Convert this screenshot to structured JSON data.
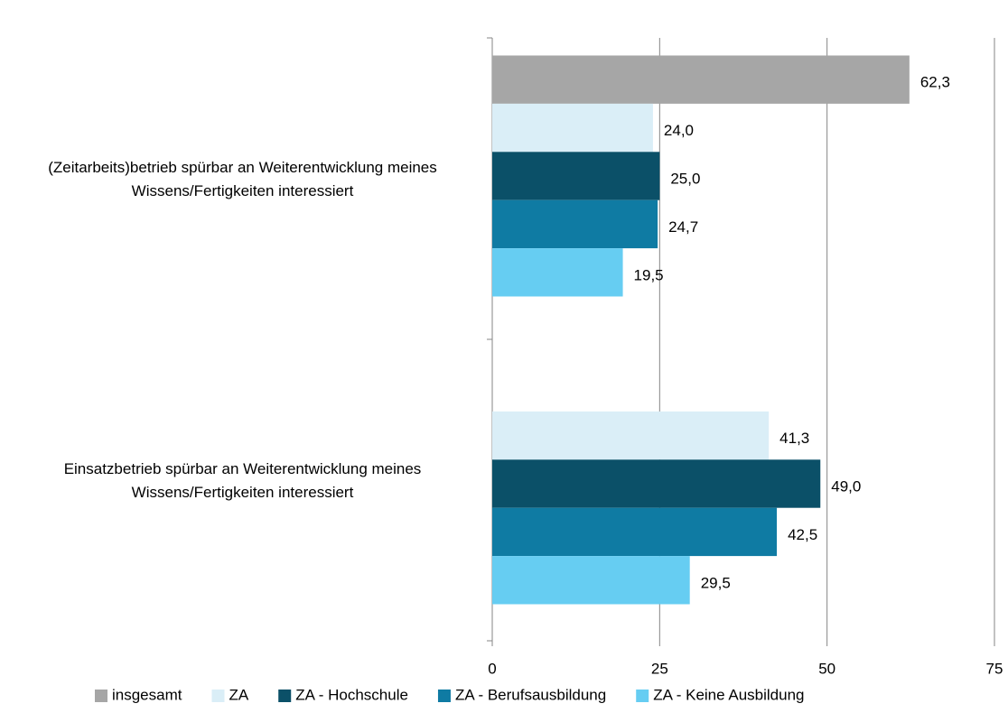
{
  "chart_data": {
    "type": "bar",
    "orientation": "horizontal",
    "categories": [
      "(Zeitarbeits)betrieb spürbar an Weiterentwicklung meines Wissens/Fertigkeiten interessiert",
      "Einsatzbetrieb spürbar an Weiterentwicklung meines Wissens/Fertigkeiten interessiert"
    ],
    "series": [
      {
        "name": "insgesamt",
        "color": "#a6a6a6",
        "values": [
          62.3,
          null
        ],
        "value_labels": [
          "62,3",
          null
        ]
      },
      {
        "name": "ZA",
        "color": "#daeef7",
        "values": [
          24.0,
          41.3
        ],
        "value_labels": [
          "24,0",
          "41,3"
        ]
      },
      {
        "name": "ZA - Hochschule",
        "color": "#0b5068",
        "values": [
          25.0,
          49.0
        ],
        "value_labels": [
          "25,0",
          "49,0"
        ]
      },
      {
        "name": "ZA - Berufsausbildung",
        "color": "#0f7ba3",
        "values": [
          24.7,
          42.5
        ],
        "value_labels": [
          "24,7",
          "42,5"
        ]
      },
      {
        "name": "ZA - Keine Ausbildung",
        "color": "#66cdf2",
        "values": [
          19.5,
          29.5
        ],
        "value_labels": [
          "19,5",
          "29,5"
        ]
      }
    ],
    "xlim": [
      0,
      75
    ],
    "xticks": [
      0,
      25,
      50,
      75
    ],
    "grid": true,
    "legend": "bottom"
  }
}
